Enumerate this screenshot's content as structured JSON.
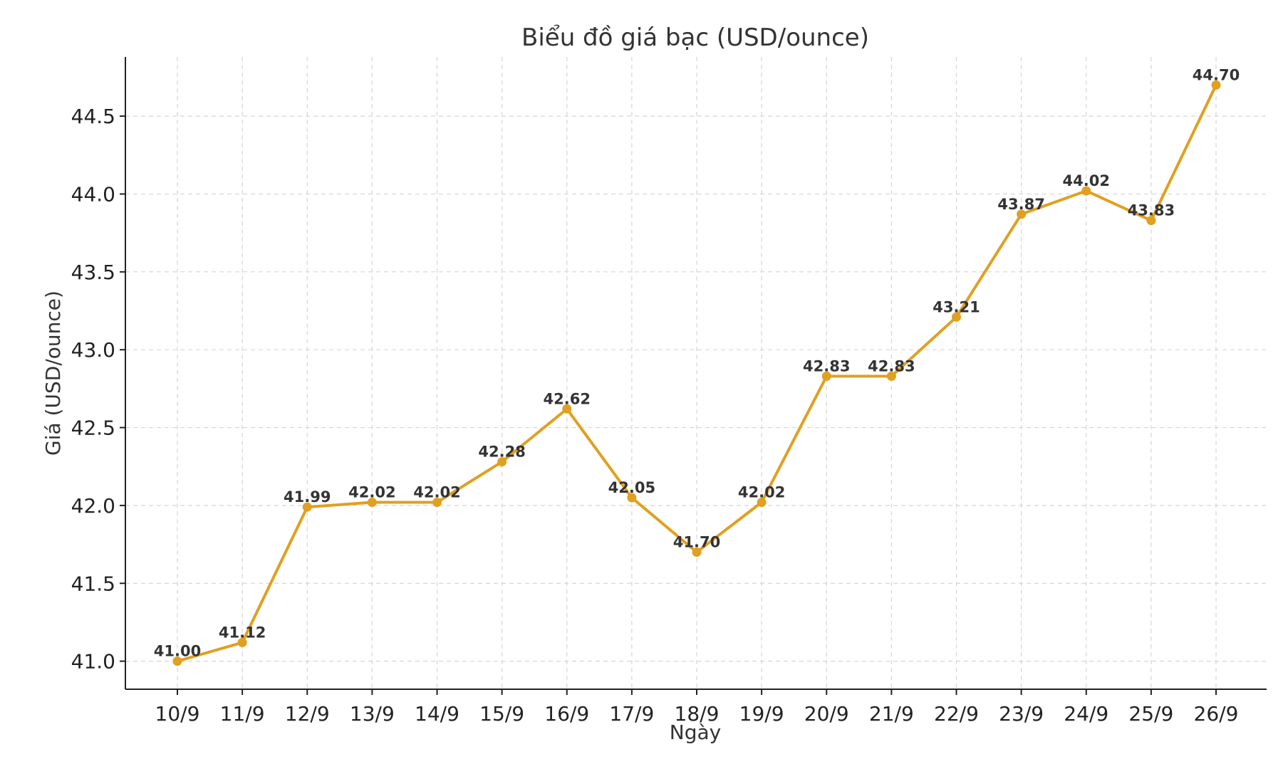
{
  "chart_data": {
    "type": "line",
    "title": "Biểu đồ giá bạc (USD/ounce)",
    "xlabel": "Ngày",
    "ylabel": "Giá (USD/ounce)",
    "categories": [
      "10/9",
      "11/9",
      "12/9",
      "13/9",
      "14/9",
      "15/9",
      "16/9",
      "17/9",
      "18/9",
      "19/9",
      "20/9",
      "21/9",
      "22/9",
      "23/9",
      "24/9",
      "25/9",
      "26/9"
    ],
    "series": [
      {
        "values": [
          41.0,
          41.12,
          41.99,
          42.02,
          42.02,
          42.28,
          42.62,
          42.05,
          41.7,
          42.02,
          42.83,
          42.83,
          43.21,
          43.87,
          44.02,
          43.83,
          44.7
        ],
        "labels": [
          "41.00",
          "41.12",
          "41.99",
          "42.02",
          "42.02",
          "42.28",
          "42.62",
          "42.05",
          "41.70",
          "42.02",
          "42.83",
          "42.83",
          "43.21",
          "43.87",
          "44.02",
          "43.83",
          "44.70"
        ]
      }
    ],
    "yticks": [
      41.0,
      41.5,
      42.0,
      42.5,
      43.0,
      43.5,
      44.0,
      44.5
    ],
    "ytick_labels": [
      "41.0",
      "41.5",
      "42.0",
      "42.5",
      "43.0",
      "43.5",
      "44.0",
      "44.5"
    ],
    "ylim": [
      40.82,
      44.88
    ],
    "grid": true,
    "line_color": "#e0a020",
    "marker_color": "#e0a020",
    "markers": "circle"
  }
}
